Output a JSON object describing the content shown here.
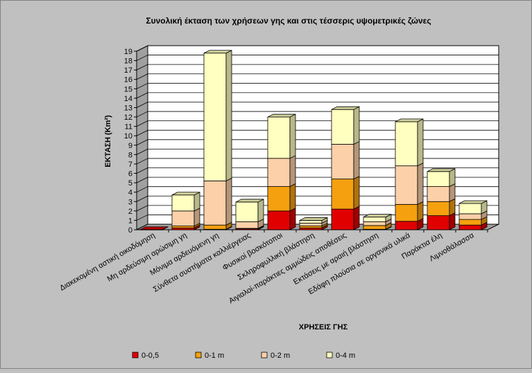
{
  "chart_data": {
    "type": "bar",
    "stacked": true,
    "three_d": true,
    "title": "Συνολική έκταση των χρήσεων γης και στις τέσσερις υψομετρικές ζώνες",
    "xlabel": "ΧΡΗΣΕΙΣ ΓΗΣ",
    "ylabel": "ΕΚΤΑΣΗ (Km²)",
    "ylim": [
      0,
      19
    ],
    "yticks": [
      "0",
      "1",
      "2",
      "3",
      "4",
      "5",
      "6",
      "7",
      "8",
      "9",
      "10",
      "11",
      "12",
      "13",
      "14",
      "15",
      "16",
      "17",
      "18",
      "19"
    ],
    "grid": true,
    "legend_position": "bottom",
    "categories": [
      "Διακεκομένη αστική οικοδόμηση",
      "Μη αρδεύσιμη αρώσιμη γη",
      "Μόνιμα αρδευόμενη γη",
      "Σύνθετα συστήματα καλλιέργειας",
      "Φυσικοί βοσκότοποι",
      "Σκληροφυλλική βλάστηση",
      "Αιγιαλοί-παράκτιες αμμώδεις αποθέσεις",
      "Εκτάσεις με αραιή βλάστηση",
      "Εδάφη πλούσια σε οργανικά υλικά",
      "Παράκτια έλη",
      "Λιμνοθάλασσα"
    ],
    "series": [
      {
        "name": "0-0,5",
        "color": "#e00000",
        "values": [
          0.02,
          0.2,
          0.05,
          0.1,
          2.0,
          0.2,
          2.2,
          0.05,
          0.9,
          1.5,
          0.5
        ]
      },
      {
        "name": "0-1 m",
        "color": "#f5a00f",
        "values": [
          0.0,
          0.2,
          0.45,
          0.05,
          2.6,
          0.2,
          3.2,
          0.4,
          1.8,
          1.5,
          0.6
        ]
      },
      {
        "name": "0-2 m",
        "color": "#fcd0a8",
        "values": [
          0.0,
          1.6,
          4.7,
          0.7,
          3.0,
          0.3,
          3.7,
          0.4,
          4.1,
          1.6,
          0.6
        ]
      },
      {
        "name": "0-4 m",
        "color": "#ffffc0",
        "values": [
          0.0,
          1.7,
          13.6,
          2.1,
          4.4,
          0.3,
          3.7,
          0.5,
          4.7,
          1.6,
          1.1
        ]
      }
    ]
  }
}
